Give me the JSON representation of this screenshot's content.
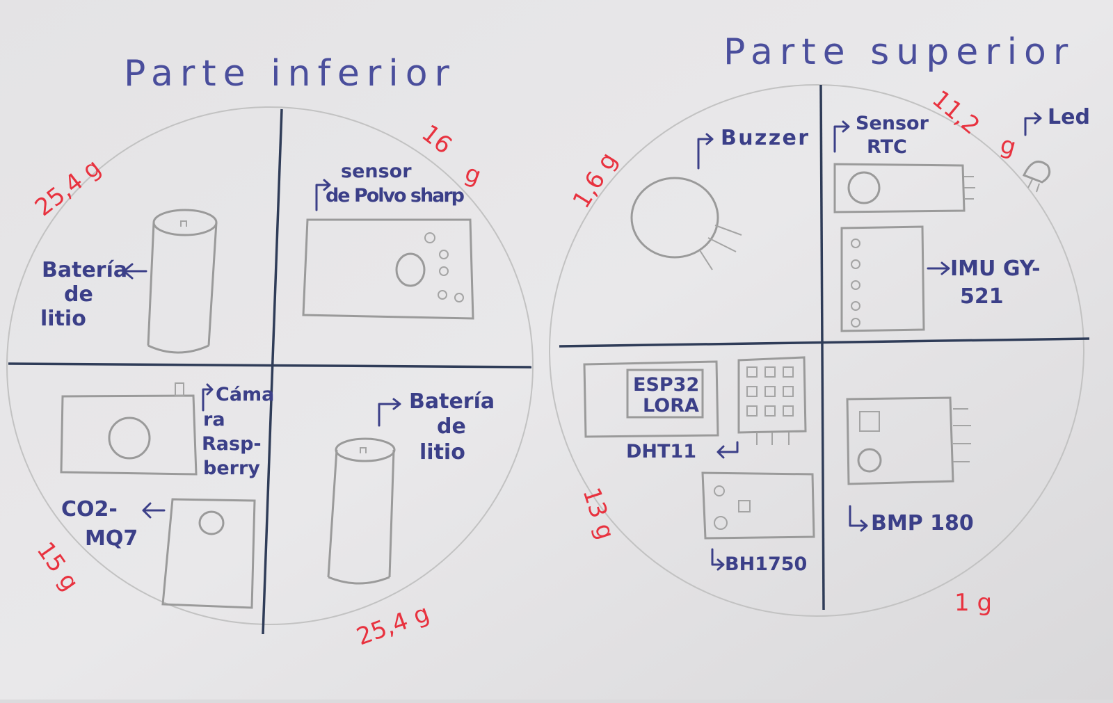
{
  "colors": {
    "paper": "#e6e5e7",
    "ink_blue": "#3b3f88",
    "ink_red": "#e8323f",
    "pencil": "#9a9a9a",
    "divider": "#2f3c58"
  },
  "titles": {
    "lower": "Parte inferior",
    "upper": "Parte superior"
  },
  "lower": {
    "tl": {
      "label": [
        "Batería",
        "de",
        "litio"
      ],
      "weight": "25,4 g"
    },
    "tr": {
      "label": [
        "sensor",
        "de Polvo sharp"
      ],
      "weight_num": "16",
      "weight_unit": "g"
    },
    "bl": {
      "camera": [
        "Cáma",
        "ra",
        "Rasp-",
        "berry"
      ],
      "co2": [
        "CO2-",
        "MQ7"
      ],
      "weight": "15 g"
    },
    "br": {
      "label": [
        "Batería",
        "de",
        "litio"
      ],
      "weight": "25,4 g"
    }
  },
  "upper": {
    "tl": {
      "label": "Buzzer",
      "weight": "1,6 g"
    },
    "tr": {
      "rtc": [
        "Sensor",
        "RTC"
      ],
      "rtc_weight": "11,2",
      "led_weight": "g",
      "led": "Led",
      "imu": [
        "IMU GY-",
        "521"
      ]
    },
    "bl": {
      "esp": [
        "ESP32",
        "LORA"
      ],
      "dht": "DHT11",
      "bh": "BH1750",
      "weight": "13 g"
    },
    "br": {
      "bmp": "BMP 180",
      "weight": "1 g"
    }
  }
}
